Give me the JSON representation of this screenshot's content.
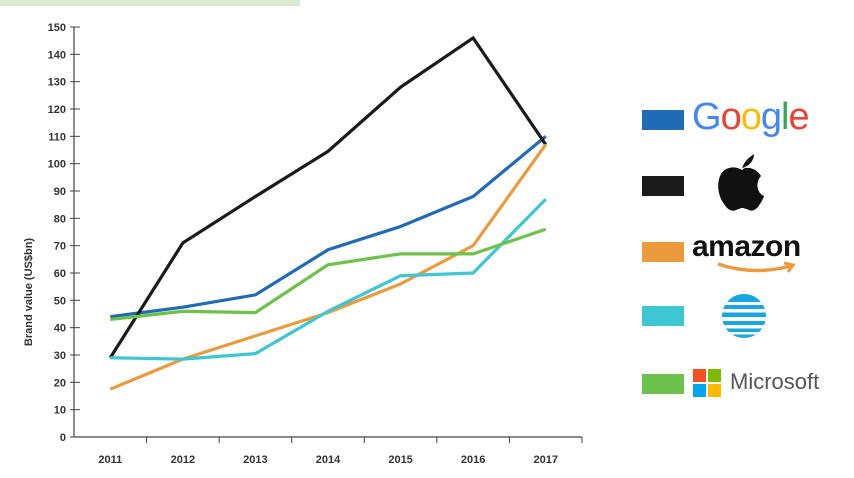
{
  "chart_data": {
    "type": "line",
    "ylabel": "Brand value (US$bn)",
    "xlabel": "",
    "ylim": [
      0,
      150
    ],
    "yticks": [
      0,
      10,
      20,
      30,
      40,
      50,
      60,
      70,
      80,
      90,
      100,
      110,
      120,
      130,
      140,
      150
    ],
    "categories": [
      "2011",
      "2012",
      "2013",
      "2014",
      "2015",
      "2016",
      "2017"
    ],
    "grid": false,
    "legend_position": "right",
    "series": [
      {
        "name": "Google",
        "color": "#1f6bb5",
        "values": [
          44,
          47.5,
          52,
          68.5,
          77,
          88,
          110
        ]
      },
      {
        "name": "Apple",
        "color": "#1a1a1a",
        "values": [
          29,
          71,
          88,
          104.5,
          128,
          146,
          107
        ]
      },
      {
        "name": "amazon",
        "color": "#eb9a3c",
        "values": [
          17.5,
          28.5,
          37,
          45.5,
          56,
          70,
          107
        ]
      },
      {
        "name": "AT&T",
        "color": "#3ec6d3",
        "values": [
          29,
          28.5,
          30.5,
          46,
          59,
          60,
          87
        ]
      },
      {
        "name": "Microsoft",
        "color": "#6cc24a",
        "values": [
          43,
          46,
          45.5,
          63,
          67,
          67,
          76
        ]
      }
    ]
  },
  "legend": [
    {
      "brand": "Google",
      "color": "#1f6bb5",
      "logo_text": "Google",
      "icon": "google-logo"
    },
    {
      "brand": "Apple",
      "color": "#1a1a1a",
      "logo_text": "",
      "icon": "apple-logo-icon"
    },
    {
      "brand": "amazon",
      "color": "#eb9a3c",
      "logo_text": "amazon",
      "icon": "amazon-logo"
    },
    {
      "brand": "AT&T",
      "color": "#3ec6d3",
      "logo_text": "",
      "icon": "att-globe-icon"
    },
    {
      "brand": "Microsoft",
      "color": "#6cc24a",
      "logo_text": "Microsoft",
      "icon": "microsoft-logo"
    }
  ],
  "colors": {
    "axis": "#444444",
    "top_strip": "#d9ead0"
  }
}
